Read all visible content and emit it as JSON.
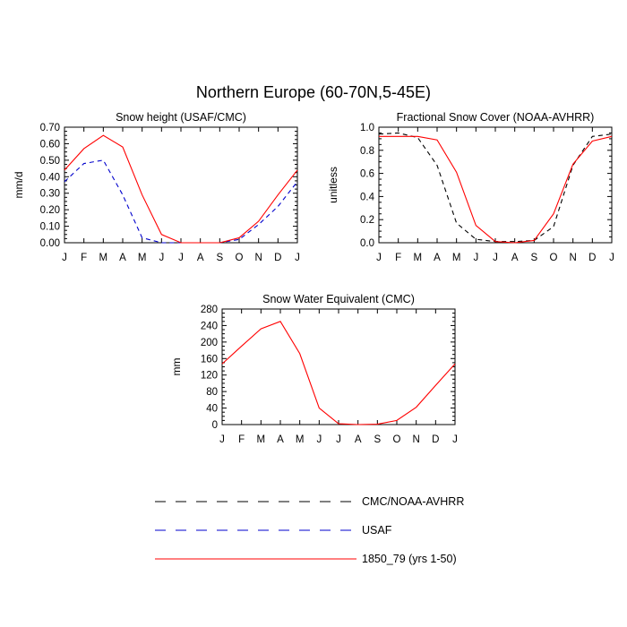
{
  "figure": {
    "title": "Northern Europe (60-70N,5-45E)"
  },
  "legend": [
    {
      "label": "CMC/NOAA-AVHRR",
      "color": "#000000",
      "dash": "long"
    },
    {
      "label": "USAF",
      "color": "#0000cc",
      "dash": "long"
    },
    {
      "label": "1850_79 (yrs 1-50)",
      "color": "#ff0000",
      "dash": "solid"
    }
  ],
  "chart_data": [
    {
      "type": "line",
      "title": "Snow height (USAF/CMC)",
      "ylabel": "mm/d",
      "xlabel": "",
      "categories": [
        "J",
        "F",
        "M",
        "A",
        "M",
        "J",
        "J",
        "A",
        "S",
        "O",
        "N",
        "D",
        "J"
      ],
      "ylim": [
        0,
        0.7
      ],
      "yticks": [
        0.0,
        0.1,
        0.2,
        0.3,
        0.4,
        0.5,
        0.6,
        0.7
      ],
      "ytick_labels": [
        "0.00",
        "0.10",
        "0.20",
        "0.30",
        "0.40",
        "0.50",
        "0.60",
        "0.70"
      ],
      "series": [
        {
          "name": "USAF",
          "color": "#0000cc",
          "dash": "dashed",
          "values": [
            0.37,
            0.48,
            0.5,
            0.29,
            0.03,
            0.0,
            0.0,
            0.0,
            0.0,
            0.02,
            0.11,
            0.22,
            0.37
          ]
        },
        {
          "name": "1850_79 (yrs 1-50)",
          "color": "#ff0000",
          "dash": "solid",
          "values": [
            0.44,
            0.57,
            0.65,
            0.58,
            0.29,
            0.05,
            0.0,
            0.0,
            0.0,
            0.03,
            0.13,
            0.29,
            0.44
          ]
        }
      ]
    },
    {
      "type": "line",
      "title": "Fractional Snow Cover (NOAA-AVHRR)",
      "ylabel": "unitless",
      "xlabel": "",
      "categories": [
        "J",
        "F",
        "M",
        "A",
        "M",
        "J",
        "J",
        "A",
        "S",
        "O",
        "N",
        "D",
        "J"
      ],
      "ylim": [
        0,
        1.0
      ],
      "yticks": [
        0.0,
        0.2,
        0.4,
        0.6,
        0.8,
        1.0
      ],
      "ytick_labels": [
        "0.0",
        "0.2",
        "0.4",
        "0.6",
        "0.8",
        "1.0"
      ],
      "series": [
        {
          "name": "CMC/NOAA-AVHRR",
          "color": "#000000",
          "dash": "dashed",
          "values": [
            0.94,
            0.95,
            0.91,
            0.67,
            0.17,
            0.03,
            0.01,
            0.01,
            0.02,
            0.14,
            0.67,
            0.92,
            0.94
          ]
        },
        {
          "name": "1850_79 (yrs 1-50)",
          "color": "#ff0000",
          "dash": "solid",
          "values": [
            0.92,
            0.92,
            0.92,
            0.89,
            0.61,
            0.15,
            0.01,
            0.0,
            0.02,
            0.25,
            0.68,
            0.88,
            0.92
          ]
        }
      ]
    },
    {
      "type": "line",
      "title": "Snow Water Equivalent (CMC)",
      "ylabel": "mm",
      "xlabel": "",
      "categories": [
        "J",
        "F",
        "M",
        "A",
        "M",
        "J",
        "J",
        "A",
        "S",
        "O",
        "N",
        "D",
        "J"
      ],
      "ylim": [
        0,
        280
      ],
      "yticks": [
        0,
        40,
        80,
        120,
        160,
        200,
        240,
        280
      ],
      "ytick_labels": [
        "0",
        "40",
        "80",
        "120",
        "160",
        "200",
        "240",
        "280"
      ],
      "series": [
        {
          "name": "CMC/NOAA-AVHRR",
          "color": "#000000",
          "dash": "dashed",
          "values": [
            0,
            0,
            0,
            0,
            0,
            0,
            0,
            0,
            0,
            0,
            0,
            0,
            0
          ]
        },
        {
          "name": "1850_79 (yrs 1-50)",
          "color": "#ff0000",
          "dash": "solid",
          "values": [
            147,
            190,
            232,
            250,
            172,
            40,
            2,
            0,
            1,
            10,
            42,
            95,
            147
          ]
        }
      ]
    }
  ]
}
